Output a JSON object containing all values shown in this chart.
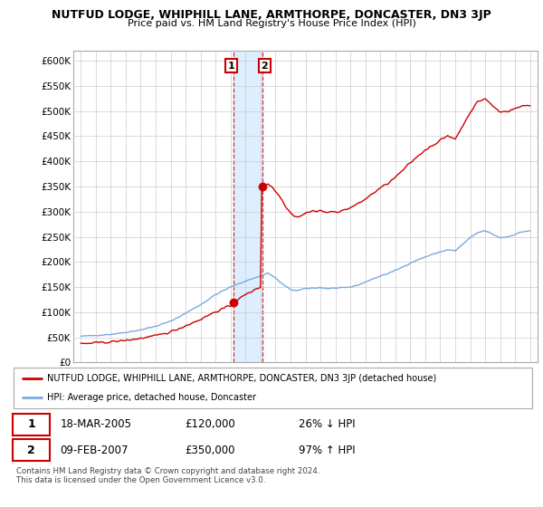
{
  "title": "NUTFUD LODGE, WHIPHILL LANE, ARMTHORPE, DONCASTER, DN3 3JP",
  "subtitle": "Price paid vs. HM Land Registry's House Price Index (HPI)",
  "legend_line1": "NUTFUD LODGE, WHIPHILL LANE, ARMTHORPE, DONCASTER, DN3 3JP (detached house)",
  "legend_line2": "HPI: Average price, detached house, Doncaster",
  "footnote1": "Contains HM Land Registry data © Crown copyright and database right 2024.",
  "footnote2": "This data is licensed under the Open Government Licence v3.0.",
  "sale1_date": "18-MAR-2005",
  "sale1_price": "£120,000",
  "sale1_hpi": "26% ↓ HPI",
  "sale2_date": "09-FEB-2007",
  "sale2_price": "£350,000",
  "sale2_hpi": "97% ↑ HPI",
  "sale1_x": 2005.21,
  "sale1_y": 120000,
  "sale2_x": 2007.11,
  "sale2_y": 350000,
  "hpi_color": "#7aaadd",
  "prop_color": "#cc0000",
  "shade_color": "#ddeeff",
  "ylim_min": 0,
  "ylim_max": 620000,
  "xlim_min": 1994.5,
  "xlim_max": 2025.5,
  "yticks": [
    0,
    50000,
    100000,
    150000,
    200000,
    250000,
    300000,
    350000,
    400000,
    450000,
    500000,
    550000,
    600000
  ],
  "ytick_labels": [
    "£0",
    "£50K",
    "£100K",
    "£150K",
    "£200K",
    "£250K",
    "£300K",
    "£350K",
    "£400K",
    "£450K",
    "£500K",
    "£550K",
    "£600K"
  ],
  "xticks": [
    1995,
    1996,
    1997,
    1998,
    1999,
    2000,
    2001,
    2002,
    2003,
    2004,
    2005,
    2006,
    2007,
    2008,
    2009,
    2010,
    2011,
    2012,
    2013,
    2014,
    2015,
    2016,
    2017,
    2018,
    2019,
    2020,
    2021,
    2022,
    2023,
    2024,
    2025
  ]
}
